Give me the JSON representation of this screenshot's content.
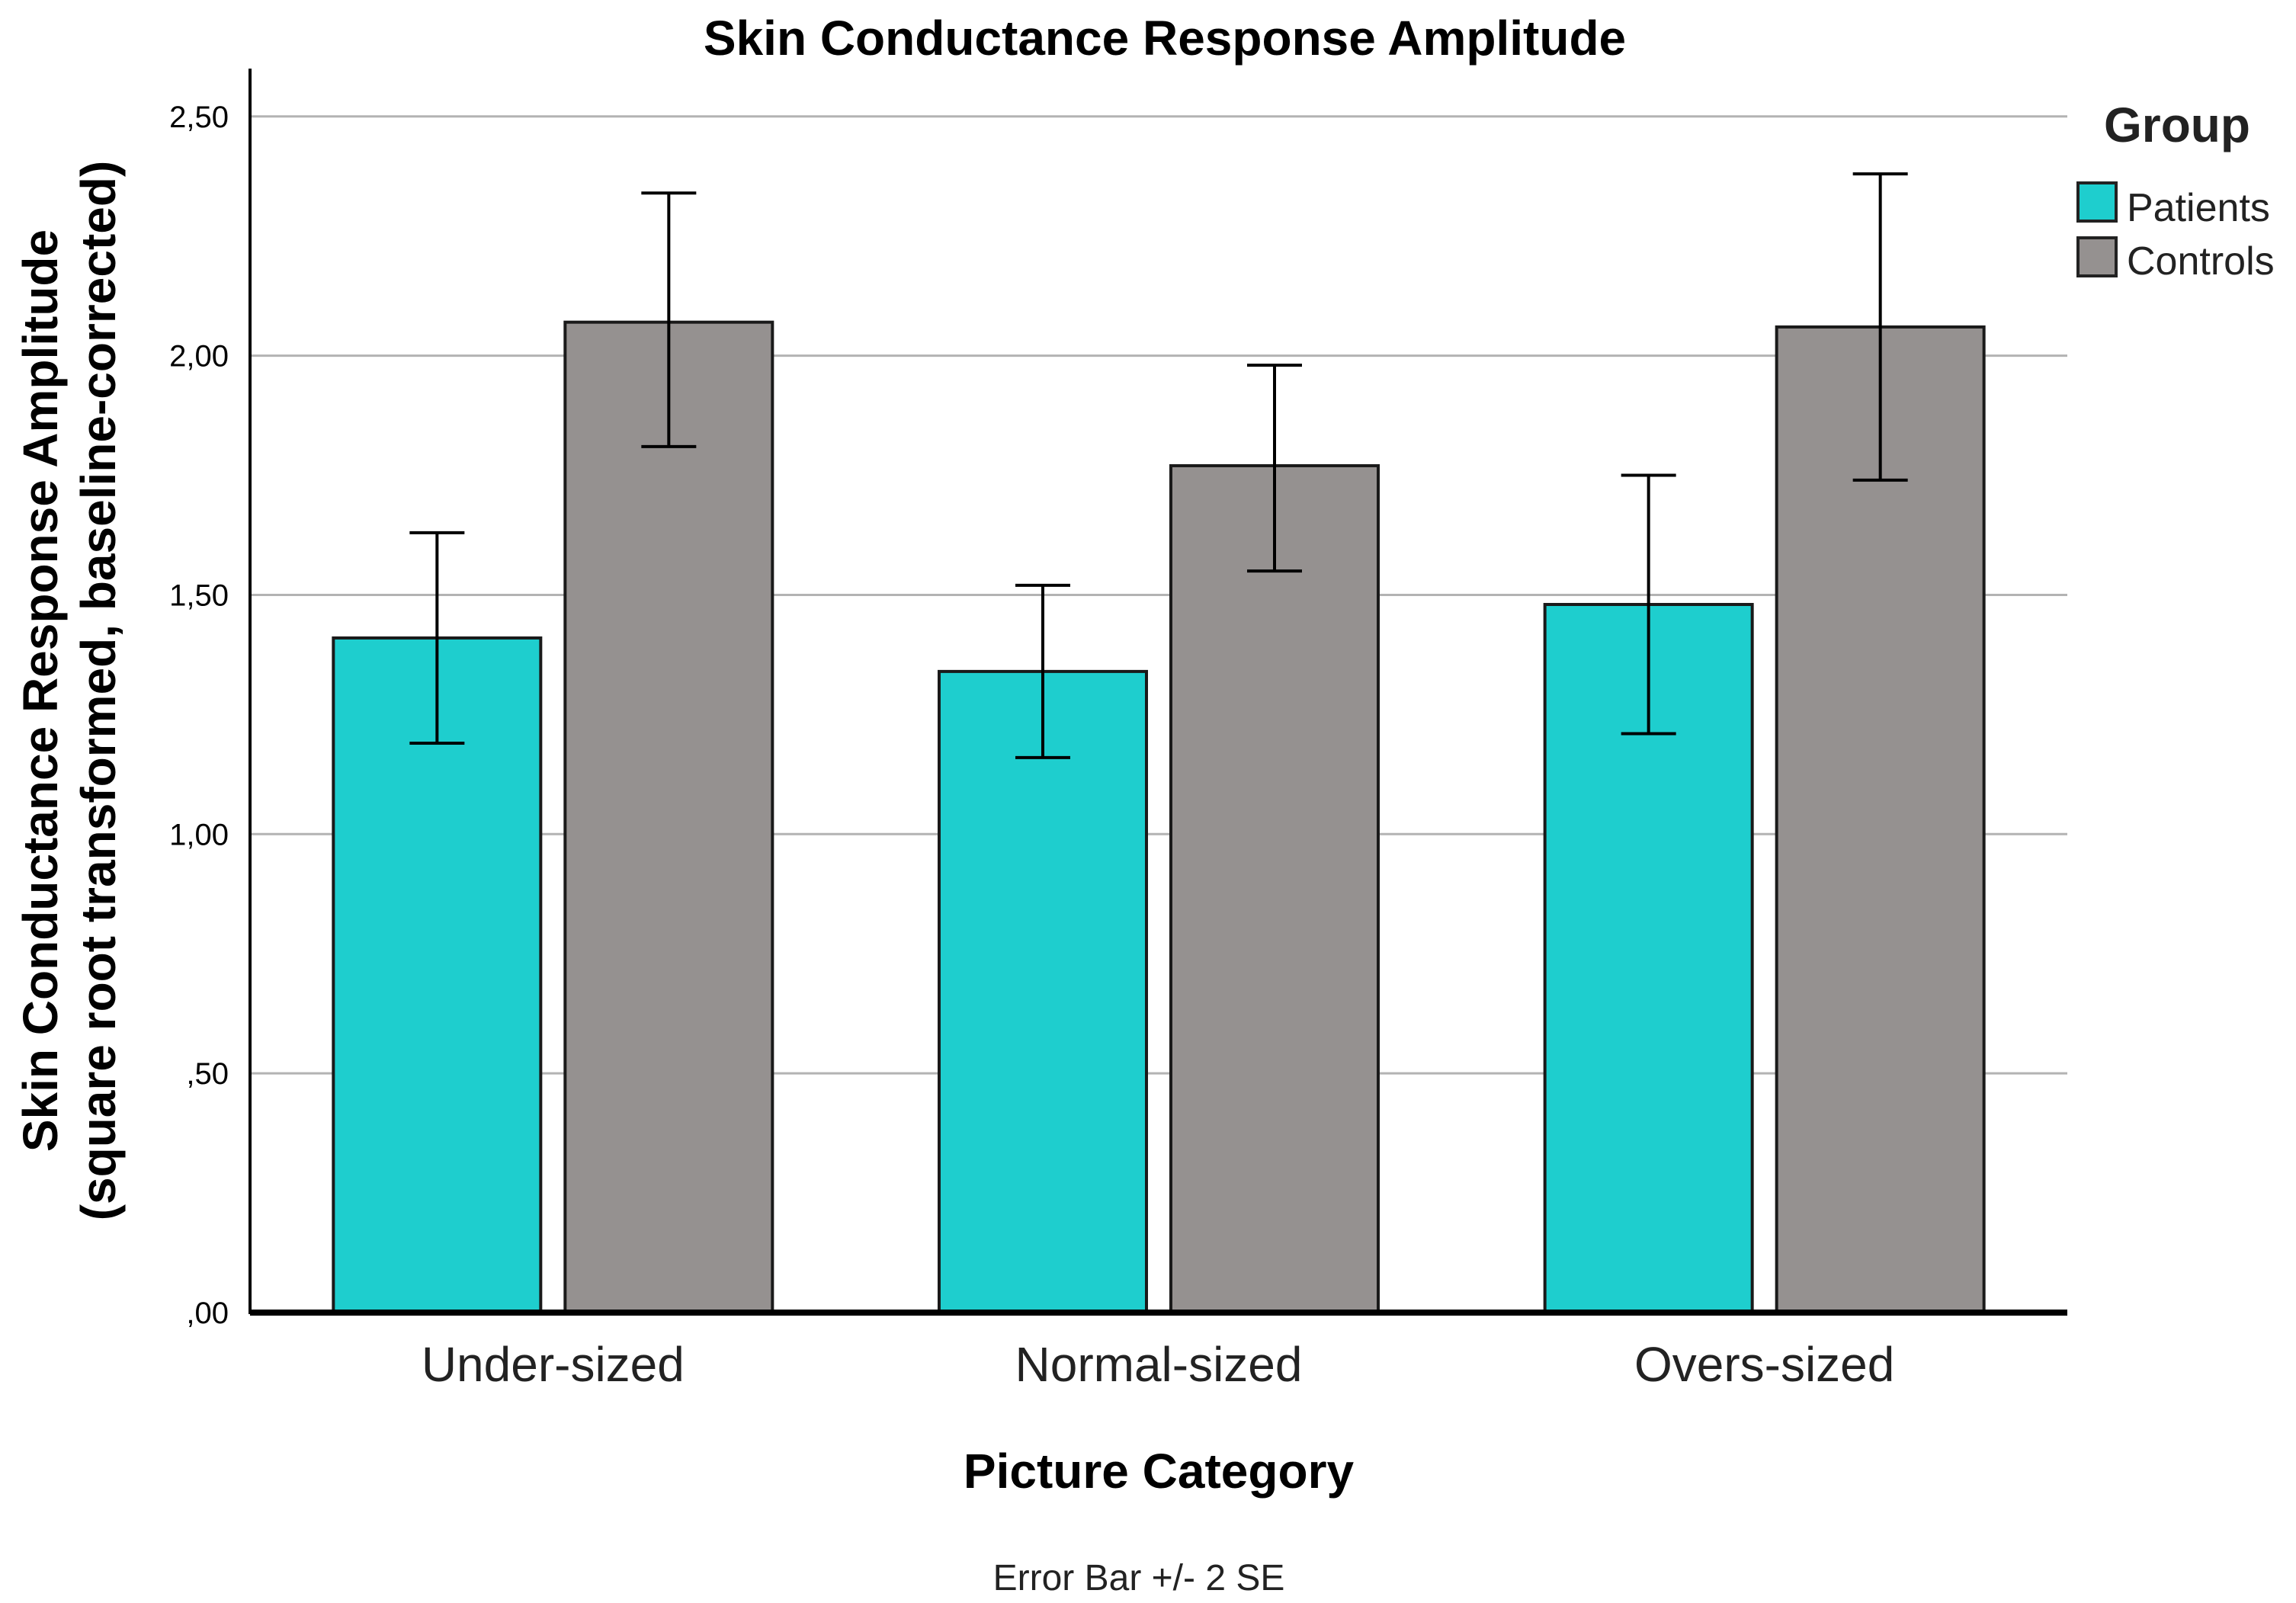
{
  "chart_data": {
    "type": "bar",
    "title": "Skin Conductance Response Amplitude",
    "xlabel": "Picture Category",
    "ylabel_lines": [
      "Skin Conductance Response Amplitude",
      "(square root transformed, baseline-corrected)"
    ],
    "categories": [
      "Under-sized",
      "Normal-sized",
      "Overs-sized"
    ],
    "ylim": [
      0,
      2.6
    ],
    "yticks": [
      0,
      0.5,
      1.0,
      1.5,
      2.0,
      2.5
    ],
    "ytick_labels": [
      ",00",
      ",50",
      "1,00",
      "1,50",
      "2,00",
      "2,50"
    ],
    "grid": true,
    "legend": {
      "title": "Group",
      "position": "top-right"
    },
    "series": [
      {
        "name": "Patients",
        "color": "#1ecece",
        "values": [
          1.41,
          1.34,
          1.48
        ],
        "err_low": [
          1.19,
          1.16,
          1.21
        ],
        "err_high": [
          1.63,
          1.52,
          1.75
        ]
      },
      {
        "name": "Controls",
        "color": "#959190",
        "values": [
          2.07,
          1.77,
          2.06
        ],
        "err_low": [
          1.81,
          1.55,
          1.74
        ],
        "err_high": [
          2.34,
          1.98,
          2.38
        ]
      }
    ],
    "footnote": "Error Bar +/- 2 SE"
  }
}
